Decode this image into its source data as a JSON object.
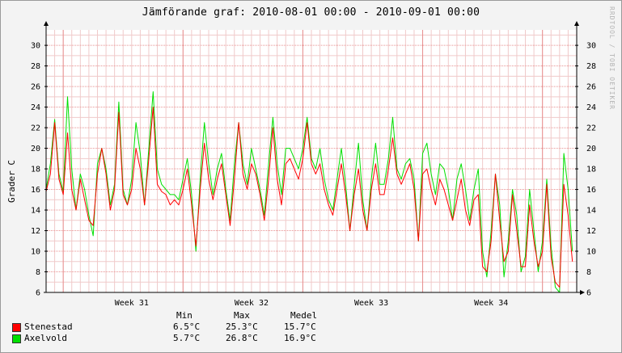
{
  "chart_data": {
    "type": "line",
    "title": "Jämförande graf: 2010-08-01 00:00 - 2010-09-01 00:00",
    "ylabel": "Grader C",
    "xlabel": "",
    "ylim": [
      6,
      31.5
    ],
    "yticks": [
      6,
      8,
      10,
      12,
      14,
      16,
      18,
      20,
      22,
      24,
      26,
      28,
      30
    ],
    "x_unit": "days since 2010-08-01 00:00",
    "xlim": [
      0,
      31
    ],
    "x_ticks": [
      {
        "label": "Week 31",
        "x": 5
      },
      {
        "label": "Week 32",
        "x": 12
      },
      {
        "label": "Week 33",
        "x": 19
      },
      {
        "label": "Week 34",
        "x": 26
      }
    ],
    "grid": true,
    "series": [
      {
        "name": "Stenestad",
        "color": "#ff0000",
        "x": [
          0,
          0.25,
          0.5,
          0.75,
          1,
          1.25,
          1.5,
          1.75,
          2,
          2.25,
          2.5,
          2.75,
          3,
          3.25,
          3.5,
          3.75,
          4,
          4.25,
          4.5,
          4.75,
          5,
          5.25,
          5.5,
          5.75,
          6,
          6.25,
          6.5,
          6.75,
          7,
          7.25,
          7.5,
          7.75,
          8,
          8.25,
          8.5,
          8.75,
          9,
          9.25,
          9.5,
          9.75,
          10,
          10.25,
          10.5,
          10.75,
          11,
          11.25,
          11.5,
          11.75,
          12,
          12.25,
          12.5,
          12.75,
          13,
          13.25,
          13.5,
          13.75,
          14,
          14.25,
          14.5,
          14.75,
          15,
          15.25,
          15.5,
          15.75,
          16,
          16.25,
          16.5,
          16.75,
          17,
          17.25,
          17.5,
          17.75,
          18,
          18.25,
          18.5,
          18.75,
          19,
          19.25,
          19.5,
          19.75,
          20,
          20.25,
          20.5,
          20.75,
          21,
          21.25,
          21.5,
          21.75,
          22,
          22.25,
          22.5,
          22.75,
          23,
          23.25,
          23.5,
          23.75,
          24,
          24.25,
          24.5,
          24.75,
          25,
          25.25,
          25.5,
          25.75,
          26,
          26.25,
          26.5,
          26.75,
          27,
          27.25,
          27.5,
          27.75,
          28,
          28.25,
          28.5,
          28.75,
          29,
          29.25,
          29.5,
          29.75,
          30,
          30.25,
          30.5,
          30.75
        ],
        "values": [
          15.8,
          17.5,
          22.5,
          17.0,
          15.5,
          21.5,
          16.0,
          14.0,
          17.0,
          15.0,
          13.0,
          12.5,
          17.5,
          20.0,
          17.5,
          14.0,
          16.0,
          23.5,
          15.5,
          14.5,
          16.0,
          20.0,
          18.0,
          14.5,
          19.0,
          24.0,
          16.5,
          15.8,
          15.5,
          14.5,
          15.0,
          14.5,
          16.0,
          18.0,
          14.5,
          10.5,
          16.0,
          20.5,
          17.0,
          15.0,
          17.0,
          18.5,
          15.5,
          12.5,
          17.0,
          22.5,
          17.5,
          16.0,
          18.5,
          17.5,
          15.5,
          13.0,
          17.0,
          22.0,
          17.0,
          14.5,
          18.5,
          19.0,
          18.0,
          17.0,
          19.0,
          22.5,
          18.5,
          17.5,
          18.5,
          16.0,
          14.5,
          13.5,
          16.0,
          18.5,
          15.5,
          12.0,
          15.5,
          18.0,
          14.0,
          12.0,
          16.0,
          18.5,
          15.5,
          15.5,
          18.0,
          21.0,
          17.5,
          16.5,
          17.5,
          18.5,
          16.0,
          11.0,
          17.5,
          18.0,
          16.0,
          14.5,
          17.0,
          16.0,
          14.5,
          13.0,
          15.0,
          17.0,
          14.0,
          12.5,
          15.0,
          15.5,
          8.5,
          8.0,
          11.0,
          17.5,
          13.0,
          9.0,
          10.0,
          15.5,
          12.0,
          8.5,
          8.5,
          14.5,
          11.0,
          8.5,
          10.0,
          16.5,
          9.5,
          7.0,
          6.5,
          16.5,
          13.5,
          9.0
        ]
      },
      {
        "name": "Axelvold",
        "color": "#00e000",
        "x": [
          0,
          0.25,
          0.5,
          0.75,
          1,
          1.25,
          1.5,
          1.75,
          2,
          2.25,
          2.5,
          2.75,
          3,
          3.25,
          3.5,
          3.75,
          4,
          4.25,
          4.5,
          4.75,
          5,
          5.25,
          5.5,
          5.75,
          6,
          6.25,
          6.5,
          6.75,
          7,
          7.25,
          7.5,
          7.75,
          8,
          8.25,
          8.5,
          8.75,
          9,
          9.25,
          9.5,
          9.75,
          10,
          10.25,
          10.5,
          10.75,
          11,
          11.25,
          11.5,
          11.75,
          12,
          12.25,
          12.5,
          12.75,
          13,
          13.25,
          13.5,
          13.75,
          14,
          14.25,
          14.5,
          14.75,
          15,
          15.25,
          15.5,
          15.75,
          16,
          16.25,
          16.5,
          16.75,
          17,
          17.25,
          17.5,
          17.75,
          18,
          18.25,
          18.5,
          18.75,
          19,
          19.25,
          19.5,
          19.75,
          20,
          20.25,
          20.5,
          20.75,
          21,
          21.25,
          21.5,
          21.75,
          22,
          22.25,
          22.5,
          22.75,
          23,
          23.25,
          23.5,
          23.75,
          24,
          24.25,
          24.5,
          24.75,
          25,
          25.25,
          25.5,
          25.75,
          26,
          26.25,
          26.5,
          26.75,
          27,
          27.25,
          27.5,
          27.75,
          28,
          28.25,
          28.5,
          28.75,
          29,
          29.25,
          29.5,
          29.75,
          30,
          30.25,
          30.5,
          30.75
        ],
        "values": [
          16.0,
          18.5,
          22.8,
          17.5,
          15.8,
          25.0,
          18.0,
          14.0,
          17.5,
          16.0,
          13.5,
          11.5,
          18.5,
          20.0,
          18.0,
          14.5,
          16.5,
          24.5,
          16.0,
          14.5,
          17.0,
          22.5,
          19.5,
          14.5,
          20.0,
          25.5,
          18.0,
          16.5,
          16.0,
          15.5,
          15.5,
          15.0,
          17.0,
          19.0,
          15.5,
          10.0,
          17.0,
          22.5,
          18.5,
          15.5,
          18.0,
          19.5,
          16.0,
          13.0,
          18.5,
          22.5,
          18.5,
          16.5,
          20.0,
          18.0,
          16.0,
          13.5,
          18.5,
          23.0,
          18.5,
          15.5,
          20.0,
          20.0,
          19.0,
          18.0,
          20.0,
          23.0,
          19.0,
          18.0,
          20.0,
          17.0,
          15.0,
          14.0,
          17.0,
          20.0,
          16.5,
          12.0,
          16.5,
          20.5,
          15.0,
          12.0,
          17.0,
          20.5,
          16.5,
          16.5,
          19.0,
          23.0,
          18.0,
          17.0,
          18.5,
          19.0,
          17.0,
          11.0,
          19.5,
          20.5,
          17.5,
          15.5,
          18.5,
          18.0,
          16.0,
          13.0,
          17.0,
          18.5,
          16.0,
          13.0,
          16.0,
          18.0,
          10.0,
          7.5,
          12.0,
          17.5,
          14.5,
          7.5,
          11.0,
          16.0,
          13.5,
          8.0,
          9.5,
          16.0,
          12.0,
          8.0,
          11.0,
          17.0,
          10.5,
          6.5,
          6.0,
          19.5,
          16.0,
          10.0
        ]
      }
    ]
  },
  "watermark": "RRDTOOL / TOBI OETIKER",
  "stats": {
    "headers": {
      "min": "Min",
      "max": "Max",
      "mean": "Medel"
    },
    "rows": [
      {
        "name": "Stenestad",
        "color": "#ff0000",
        "min": "6.5°C",
        "max": "25.3°C",
        "mean": "15.7°C"
      },
      {
        "name": "Axelvold",
        "color": "#00e000",
        "min": "5.7°C",
        "max": "26.8°C",
        "mean": "16.9°C"
      }
    ]
  }
}
